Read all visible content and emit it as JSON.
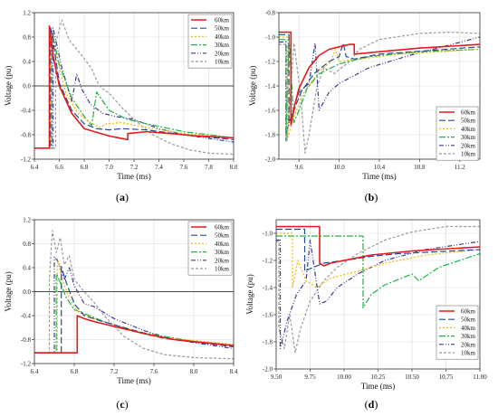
{
  "chart_data": [
    {
      "type": "line",
      "panel": "a",
      "caption": "(a)",
      "xlabel": "Time (ms)",
      "ylabel": "Voltage (pu)",
      "xlim": [
        6.4,
        8.0
      ],
      "ylim": [
        -1.2,
        1.2
      ],
      "x_ticks": [
        "6.4",
        "6.6",
        "6.8",
        "7.0",
        "7.2",
        "7.4",
        "7.6",
        "7.8",
        "8.0"
      ],
      "y_ticks": [
        "-1.2",
        "-0.8",
        "-0.4",
        "0.0",
        "0.4",
        "0.8",
        "1.2"
      ],
      "zero_line": true,
      "grid": true,
      "legend_position": "top-right",
      "series": [
        {
          "name": "60km",
          "x": [
            6.4,
            6.52,
            6.52,
            6.55,
            6.6,
            6.7,
            6.8,
            7.0,
            7.1,
            7.15,
            7.15,
            7.3,
            7.5,
            7.7,
            8.0
          ],
          "y": [
            -1.02,
            -1.02,
            0.98,
            0.5,
            0.0,
            -0.45,
            -0.7,
            -0.82,
            -0.86,
            -0.88,
            -0.78,
            -0.75,
            -0.78,
            -0.82,
            -0.85
          ]
        },
        {
          "name": "50km",
          "x": [
            6.4,
            6.53,
            6.53,
            6.56,
            6.6,
            6.7,
            6.8,
            6.9,
            7.0,
            7.1,
            7.3,
            7.6,
            8.0
          ],
          "y": [
            -1.02,
            -1.02,
            0.95,
            0.6,
            0.05,
            -0.4,
            -0.62,
            -0.7,
            -0.72,
            -0.7,
            -0.72,
            -0.8,
            -0.88
          ]
        },
        {
          "name": "40km",
          "x": [
            6.4,
            6.53,
            6.53,
            6.58,
            6.65,
            6.75,
            6.85,
            6.93,
            6.98,
            7.1,
            7.3,
            7.6,
            8.0
          ],
          "y": [
            -1.02,
            -1.02,
            0.93,
            0.45,
            -0.1,
            -0.45,
            -0.6,
            -0.68,
            -0.62,
            -0.6,
            -0.68,
            -0.78,
            -0.85
          ]
        },
        {
          "name": "30km",
          "x": [
            6.4,
            6.54,
            6.54,
            6.6,
            6.7,
            6.8,
            6.86,
            6.9,
            7.0,
            7.15,
            7.3,
            7.6,
            8.0
          ],
          "y": [
            -1.02,
            -1.02,
            0.9,
            0.35,
            -0.2,
            -0.5,
            -0.65,
            -0.1,
            -0.4,
            -0.55,
            -0.62,
            -0.75,
            -0.85
          ]
        },
        {
          "name": "20km",
          "x": [
            6.4,
            6.55,
            6.55,
            6.62,
            6.7,
            6.74,
            6.78,
            6.85,
            6.95,
            7.05,
            7.2,
            7.4,
            7.6,
            8.0
          ],
          "y": [
            -1.02,
            -1.02,
            0.95,
            0.3,
            -0.25,
            0.2,
            -0.05,
            -0.3,
            -0.45,
            -0.5,
            -0.55,
            -0.7,
            -0.8,
            -0.92
          ]
        },
        {
          "name": "10km",
          "x": [
            6.4,
            6.57,
            6.57,
            6.62,
            6.68,
            6.74,
            6.8,
            6.86,
            6.92,
            7.0,
            7.1,
            7.2,
            7.35,
            7.5,
            7.65,
            7.8,
            8.0
          ],
          "y": [
            -1.02,
            -1.02,
            0.7,
            1.08,
            0.75,
            0.6,
            0.45,
            0.28,
            0.0,
            -0.12,
            -0.35,
            -0.55,
            -0.8,
            -0.95,
            -1.05,
            -1.1,
            -1.12
          ]
        }
      ]
    },
    {
      "type": "line",
      "panel": "b",
      "caption": "(b)",
      "xlabel": "Time (ms)",
      "ylabel": "Voltage (pu)",
      "xlim": [
        9.4,
        11.4
      ],
      "ylim": [
        -2.0,
        -0.8
      ],
      "x_ticks": [
        "9.6",
        "10.0",
        "10.4",
        "10.8",
        "11.2"
      ],
      "y_ticks": [
        "-2.0",
        "-1.8",
        "-1.6",
        "-1.4",
        "-1.2",
        "-1.0",
        "-0.8"
      ],
      "grid": true,
      "legend_position": "bottom-right",
      "series": [
        {
          "name": "60km",
          "x": [
            9.4,
            9.52,
            9.52,
            9.56,
            9.6,
            9.7,
            9.8,
            9.9,
            10.0,
            10.1,
            10.15,
            10.15,
            10.4,
            10.8,
            11.4
          ],
          "y": [
            -0.96,
            -0.96,
            -1.72,
            -1.55,
            -1.42,
            -1.25,
            -1.15,
            -1.1,
            -1.08,
            -1.06,
            -1.06,
            -1.14,
            -1.12,
            -1.09,
            -1.06
          ]
        },
        {
          "name": "50km",
          "x": [
            9.4,
            9.5,
            9.5,
            9.55,
            9.62,
            9.75,
            9.9,
            10.0,
            10.04,
            10.07,
            10.15,
            10.4,
            11.4
          ],
          "y": [
            -0.98,
            -0.98,
            -1.7,
            -1.6,
            -1.45,
            -1.3,
            -1.2,
            -1.16,
            -1.05,
            -1.16,
            -1.18,
            -1.14,
            -1.08
          ]
        },
        {
          "name": "40km",
          "x": [
            9.4,
            9.49,
            9.49,
            9.55,
            9.65,
            9.8,
            9.92,
            9.96,
            10.0,
            10.2,
            10.6,
            11.4
          ],
          "y": [
            -1.0,
            -1.0,
            -1.82,
            -1.65,
            -1.45,
            -1.28,
            -1.2,
            -1.1,
            -1.2,
            -1.18,
            -1.14,
            -1.1
          ]
        },
        {
          "name": "30km",
          "x": [
            9.4,
            9.47,
            9.47,
            9.5,
            9.55,
            9.6,
            9.68,
            9.8,
            10.0,
            10.3,
            10.8,
            11.4
          ],
          "y": [
            -1.02,
            -1.02,
            -1.85,
            -1.0,
            -1.7,
            -1.6,
            -1.42,
            -1.3,
            -1.22,
            -1.16,
            -1.12,
            -1.1
          ]
        },
        {
          "name": "20km",
          "x": [
            9.4,
            9.47,
            9.47,
            9.52,
            9.6,
            9.7,
            9.76,
            9.8,
            9.9,
            10.0,
            10.3,
            10.7,
            11.4
          ],
          "y": [
            -1.04,
            -1.04,
            -1.8,
            -1.65,
            -1.45,
            -1.38,
            -1.05,
            -1.6,
            -1.45,
            -1.38,
            -1.25,
            -1.15,
            -1.0
          ]
        },
        {
          "name": "10km",
          "x": [
            9.4,
            9.48,
            9.48,
            9.55,
            9.62,
            9.66,
            9.7,
            9.78,
            9.85,
            9.95,
            10.1,
            10.2,
            10.4,
            10.8,
            11.1,
            11.4
          ],
          "y": [
            -1.06,
            -1.06,
            -1.85,
            -1.05,
            -1.5,
            -1.95,
            -1.8,
            -1.4,
            -1.25,
            -1.3,
            -1.2,
            -1.1,
            -1.02,
            -0.97,
            -0.96,
            -0.97
          ]
        }
      ]
    },
    {
      "type": "line",
      "panel": "c",
      "caption": "(c)",
      "xlabel": "Time (ms)",
      "ylabel": "Voltage (pu)",
      "xlim": [
        6.4,
        8.4
      ],
      "ylim": [
        -1.2,
        1.2
      ],
      "x_ticks": [
        "6.4",
        "6.8",
        "7.2",
        "7.6",
        "8.0",
        "8.4"
      ],
      "y_ticks": [
        "-1.2",
        "-0.8",
        "-0.4",
        "0.0",
        "0.4",
        "0.8",
        "1.2"
      ],
      "zero_line": true,
      "grid": true,
      "legend_position": "top-right",
      "series": [
        {
          "name": "60km",
          "x": [
            6.4,
            6.83,
            6.83,
            6.9,
            7.0,
            7.2,
            7.5,
            7.8,
            8.1,
            8.4
          ],
          "y": [
            -1.02,
            -1.02,
            -0.4,
            -0.45,
            -0.5,
            -0.58,
            -0.7,
            -0.8,
            -0.85,
            -0.9
          ]
        },
        {
          "name": "50km",
          "x": [
            6.4,
            6.67,
            6.67,
            6.72,
            6.8,
            6.9,
            7.05,
            7.3,
            7.7,
            8.4
          ],
          "y": [
            -1.02,
            -1.02,
            0.42,
            0.15,
            -0.2,
            -0.4,
            -0.48,
            -0.6,
            -0.78,
            -0.92
          ]
        },
        {
          "name": "40km",
          "x": [
            6.4,
            6.63,
            6.63,
            6.68,
            6.76,
            6.85,
            7.0,
            7.2,
            7.6,
            8.4
          ],
          "y": [
            -1.02,
            -1.02,
            0.55,
            0.2,
            -0.15,
            -0.35,
            -0.45,
            -0.55,
            -0.75,
            -0.88
          ]
        },
        {
          "name": "30km",
          "x": [
            6.4,
            6.62,
            6.62,
            6.66,
            6.72,
            6.8,
            6.92,
            7.1,
            7.4,
            8.0,
            8.4
          ],
          "y": [
            -1.02,
            -1.02,
            0.3,
            0.15,
            -0.1,
            -0.3,
            -0.38,
            -0.5,
            -0.66,
            -0.83,
            -0.9
          ]
        },
        {
          "name": "20km",
          "x": [
            6.4,
            6.6,
            6.6,
            6.64,
            6.7,
            6.75,
            6.8,
            6.9,
            7.0,
            7.2,
            7.5,
            7.8,
            8.4
          ],
          "y": [
            -1.02,
            -1.02,
            0.58,
            0.5,
            0.2,
            0.4,
            0.1,
            -0.2,
            -0.25,
            -0.45,
            -0.65,
            -0.8,
            -0.95
          ]
        },
        {
          "name": "10km",
          "x": [
            6.4,
            6.55,
            6.55,
            6.58,
            6.62,
            6.66,
            6.7,
            6.75,
            6.8,
            6.9,
            7.0,
            7.1,
            7.3,
            7.5,
            7.7,
            8.0,
            8.4
          ],
          "y": [
            -1.02,
            -1.02,
            0.2,
            1.02,
            0.65,
            0.9,
            0.45,
            0.6,
            0.2,
            0.0,
            -0.18,
            -0.4,
            -0.75,
            -0.95,
            -1.05,
            -1.1,
            -1.12
          ]
        }
      ]
    },
    {
      "type": "line",
      "panel": "d",
      "caption": "(d)",
      "xlabel": "Time (ms)",
      "ylabel": "Voltage (pu)",
      "xlim": [
        9.5,
        11.0
      ],
      "ylim": [
        -2.0,
        -0.9
      ],
      "x_ticks": [
        "9.50",
        "9.75",
        "10.00",
        "10.25",
        "10.50",
        "10.75",
        "11.00"
      ],
      "y_ticks": [
        "-2.0",
        "-1.8",
        "-1.6",
        "-1.4",
        "-1.2",
        "-1.0"
      ],
      "grid": true,
      "legend_position": "bottom-left",
      "series": [
        {
          "name": "60km",
          "x": [
            9.5,
            9.82,
            9.82,
            9.85,
            9.9,
            10.0,
            10.2,
            10.5,
            11.0
          ],
          "y": [
            -0.95,
            -0.95,
            -1.22,
            -1.24,
            -1.22,
            -1.2,
            -1.16,
            -1.13,
            -1.1
          ]
        },
        {
          "name": "50km",
          "x": [
            9.5,
            9.71,
            9.71,
            9.75,
            9.85,
            10.0,
            10.2,
            10.4,
            11.0
          ],
          "y": [
            -0.97,
            -0.97,
            -1.28,
            -1.26,
            -1.22,
            -1.2,
            -1.17,
            -1.15,
            -1.12
          ]
        },
        {
          "name": "40km",
          "x": [
            9.5,
            9.62,
            9.62,
            9.66,
            9.72,
            9.8,
            9.9,
            10.1,
            10.3,
            10.6,
            11.0
          ],
          "y": [
            -1.0,
            -1.0,
            -1.4,
            -1.2,
            -1.35,
            -1.4,
            -1.33,
            -1.28,
            -1.22,
            -1.16,
            -1.12
          ]
        },
        {
          "name": "30km",
          "x": [
            9.5,
            9.58,
            9.58,
            9.6,
            9.65,
            9.7,
            9.75,
            9.8,
            9.9,
            10.0,
            10.14,
            10.14,
            10.2,
            10.3,
            10.5,
            10.55,
            10.7,
            11.0
          ],
          "y": [
            -1.02,
            -1.02,
            -1.02,
            -1.02,
            -1.02,
            -1.02,
            -1.02,
            -1.02,
            -1.02,
            -1.02,
            -1.02,
            -1.55,
            -1.45,
            -1.38,
            -1.3,
            -1.35,
            -1.25,
            -1.15
          ]
        },
        {
          "name": "20km",
          "x": [
            9.5,
            9.53,
            9.53,
            9.58,
            9.65,
            9.72,
            9.75,
            9.82,
            9.87,
            9.95,
            10.1,
            10.3,
            10.6,
            11.0
          ],
          "y": [
            -1.05,
            -1.05,
            -1.85,
            -1.65,
            -1.45,
            -1.35,
            -1.05,
            -1.52,
            -1.5,
            -1.4,
            -1.3,
            -1.2,
            -1.12,
            -1.06
          ]
        },
        {
          "name": "10km",
          "x": [
            9.5,
            9.52,
            9.52,
            9.56,
            9.6,
            9.64,
            9.68,
            9.75,
            9.85,
            9.95,
            10.1,
            10.3,
            10.5,
            10.75,
            11.0
          ],
          "y": [
            -1.06,
            -1.06,
            -1.7,
            -1.85,
            -1.6,
            -1.88,
            -1.7,
            -1.5,
            -1.35,
            -1.25,
            -1.15,
            -1.05,
            -0.99,
            -0.95,
            -0.95
          ]
        }
      ]
    }
  ],
  "style": {
    "series_colors": [
      "#e41a1c",
      "#1f4e9c",
      "#f2b807",
      "#1fb24a",
      "#3b3b8f",
      "#9a9a9a"
    ],
    "series_dash": [
      "",
      "7 3",
      "2 2",
      "7 2 2 2",
      "5 2 1 2 1 2",
      "3 2"
    ],
    "series_width": [
      1.6,
      1.2,
      1.2,
      1.2,
      1.2,
      1.2
    ],
    "grid_color": "#d9d9d9"
  }
}
